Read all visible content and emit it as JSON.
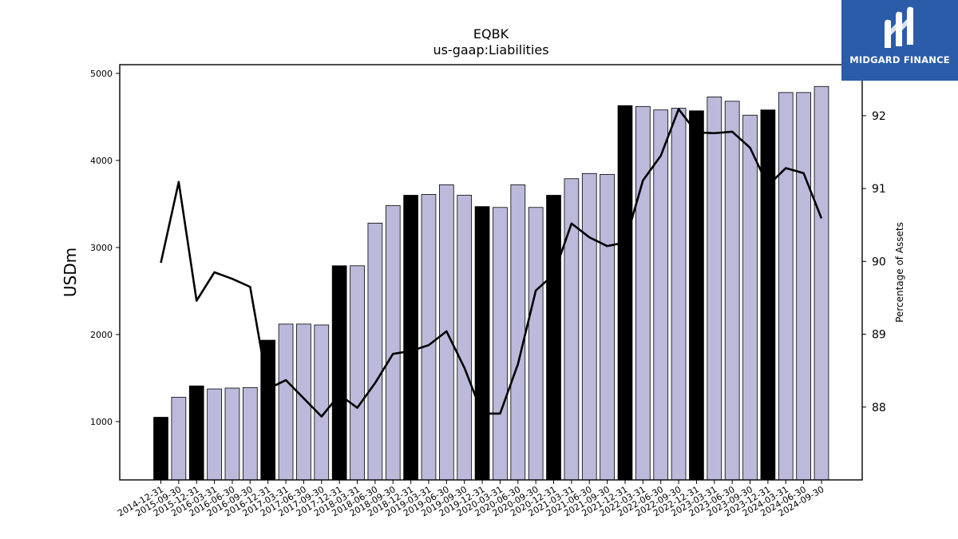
{
  "brand": {
    "name": "MIDGARD FINANCE",
    "logo_icon": "midgard-m-icon",
    "color": "#2a5caa"
  },
  "chart_data": {
    "type": "bar",
    "title": "EQBK",
    "subtitle": "us-gaap:Liabilities",
    "ylabel": "USDm",
    "y2label": "Percentage of Assets",
    "ylim": [
      330,
      5100
    ],
    "y2lim": [
      87.0,
      92.7
    ],
    "yticks": [
      1000,
      2000,
      3000,
      4000,
      5000
    ],
    "y2ticks": [
      88,
      89,
      90,
      91,
      92
    ],
    "categories": [
      "2014-12-31",
      "2015-09-30",
      "2015-12-31",
      "2016-03-31",
      "2016-06-30",
      "2016-09-30",
      "2016-12-31",
      "2017-03-31",
      "2017-06-30",
      "2017-09-30",
      "2017-12-31",
      "2018-03-31",
      "2018-06-30",
      "2018-09-30",
      "2018-12-31",
      "2019-03-31",
      "2019-06-30",
      "2019-09-30",
      "2019-12-31",
      "2020-03-31",
      "2020-06-30",
      "2020-09-30",
      "2020-12-31",
      "2021-03-31",
      "2021-06-30",
      "2021-09-30",
      "2021-12-31",
      "2022-03-31",
      "2022-06-30",
      "2022-09-30",
      "2022-12-31",
      "2023-03-31",
      "2023-06-30",
      "2023-09-30",
      "2023-12-31",
      "2024-03-31",
      "2024-06-30",
      "2024-09-30"
    ],
    "series": [
      {
        "type": "bar",
        "axis": "left",
        "values": [
          1050,
          1280,
          1410,
          1375,
          1385,
          1390,
          1935,
          2120,
          2120,
          2110,
          2790,
          2790,
          3280,
          3480,
          3600,
          3610,
          3720,
          3600,
          3470,
          3460,
          3720,
          3460,
          3600,
          3790,
          3850,
          3840,
          4630,
          4620,
          4580,
          4600,
          4570,
          4730,
          4680,
          4520,
          4580,
          4780,
          4780,
          4850
        ],
        "highlight": [
          true,
          false,
          true,
          false,
          false,
          false,
          true,
          false,
          false,
          false,
          true,
          false,
          false,
          false,
          true,
          false,
          false,
          false,
          true,
          false,
          false,
          false,
          true,
          false,
          false,
          false,
          true,
          false,
          false,
          false,
          true,
          false,
          false,
          false,
          true,
          false,
          false,
          false
        ]
      },
      {
        "type": "line",
        "axis": "right",
        "values": [
          89.98,
          91.09,
          89.46,
          89.85,
          89.76,
          89.65,
          88.25,
          88.37,
          88.12,
          87.87,
          88.17,
          87.99,
          88.33,
          88.73,
          88.77,
          88.85,
          89.04,
          88.54,
          87.91,
          87.91,
          88.59,
          89.6,
          89.82,
          90.52,
          90.33,
          90.21,
          90.26,
          91.11,
          91.45,
          92.09,
          91.77,
          91.76,
          91.78,
          91.56,
          91.04,
          91.28,
          91.21,
          90.59
        ]
      }
    ],
    "colors": {
      "bar": "#bcbadb",
      "bar_highlight": "#000000",
      "line": "#000000"
    }
  }
}
